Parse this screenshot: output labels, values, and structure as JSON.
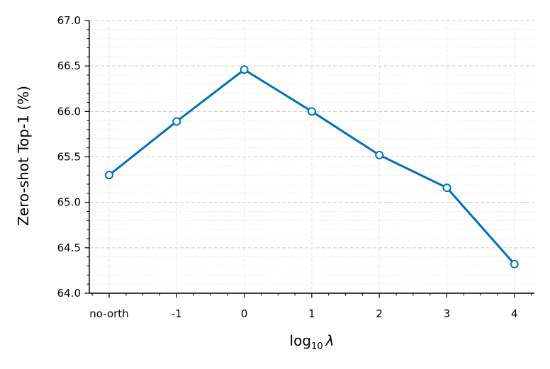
{
  "chart_data": {
    "type": "line",
    "categories": [
      "no-orth",
      "-1",
      "0",
      "1",
      "2",
      "3",
      "4"
    ],
    "series": [
      {
        "values": [
          65.3,
          65.89,
          66.46,
          66.0,
          65.52,
          65.16,
          64.32
        ]
      }
    ],
    "ylim": [
      64.0,
      67.0
    ],
    "yticks": [
      "64.0",
      "64.5",
      "65.0",
      "65.5",
      "66.0",
      "66.5",
      "67.0"
    ],
    "ylabel": "Zero-shot Top-1 (%)",
    "xlabel": {
      "base": "log",
      "subscript": "10",
      "symbol": "λ"
    },
    "grid": true,
    "legend": "none",
    "colors": {
      "line": "#0072b2",
      "marker_fill": "#ffffff",
      "grid_major": "#c8c8c8",
      "grid_minor": "#e4e4e4",
      "axis": "#000000"
    }
  }
}
